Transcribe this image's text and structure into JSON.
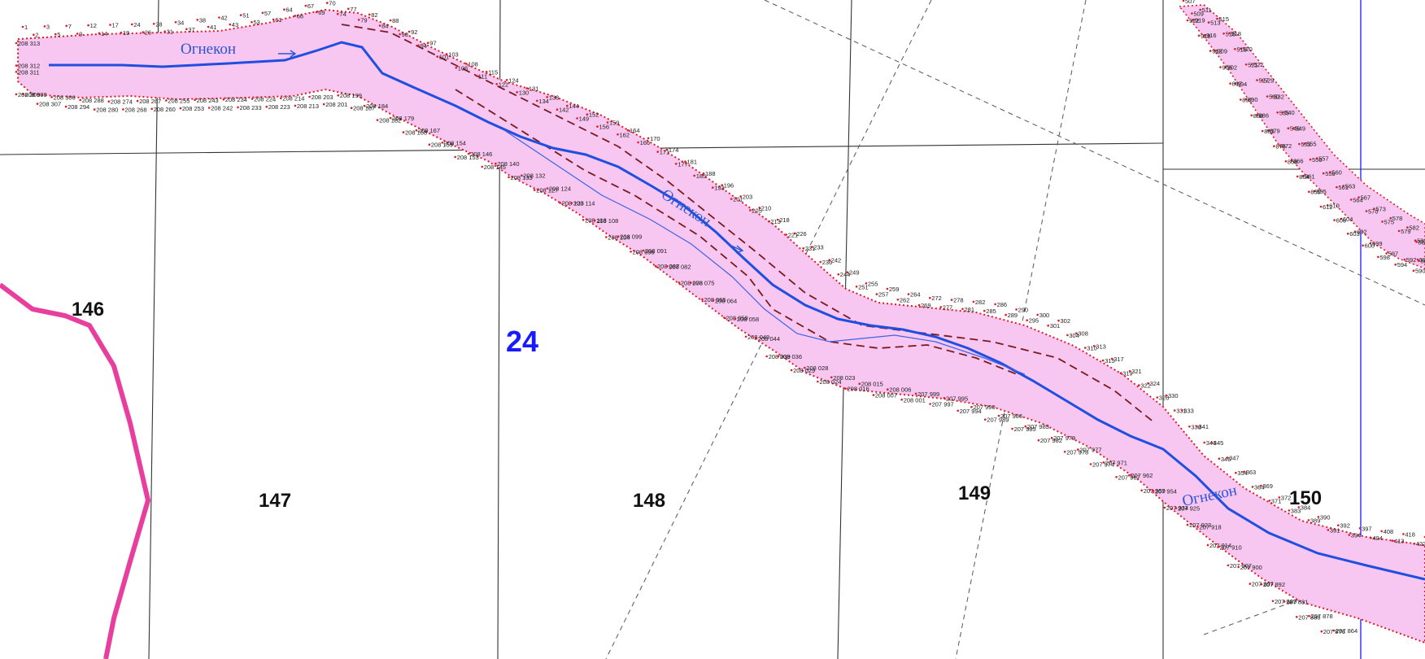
{
  "map": {
    "district_number": "24",
    "quarters": [
      "146",
      "147",
      "148",
      "149",
      "150"
    ],
    "river_name": "Огнекон",
    "river_labels": [
      "Огнекон",
      "Огнекон",
      "Огнекон"
    ],
    "colors": {
      "floodplain": "#f7c6f1",
      "river": "#1f4fe0",
      "boundary_red": "#e01b24",
      "district_border": "#e83e9e",
      "grid": "#333333",
      "district_number": "#1a1aff"
    },
    "point_labels_upper": [
      "1",
      "2",
      "3",
      "5",
      "7",
      "9",
      "12",
      "14",
      "17",
      "19",
      "24",
      "26",
      "28",
      "31",
      "34",
      "37",
      "38",
      "41",
      "42",
      "43",
      "51",
      "53",
      "57",
      "61",
      "64",
      "66",
      "67",
      "69",
      "70",
      "74",
      "77",
      "79",
      "82",
      "84",
      "88",
      "90",
      "92",
      "94",
      "97",
      "101",
      "103",
      "106",
      "108",
      "111",
      "115",
      "122",
      "124",
      "130",
      "131",
      "134",
      "138",
      "142",
      "144",
      "149",
      "152",
      "156",
      "159",
      "162",
      "164",
      "166",
      "170",
      "171",
      "174",
      "177",
      "181",
      "185",
      "188",
      "193",
      "196",
      "201",
      "203",
      "205",
      "210",
      "213",
      "218",
      "221",
      "226",
      "231",
      "233",
      "236",
      "242",
      "244",
      "249",
      "251",
      "255",
      "257",
      "259",
      "262",
      "264",
      "269",
      "272",
      "277",
      "278",
      "281",
      "282",
      "285",
      "286",
      "289",
      "290",
      "295",
      "300",
      "301",
      "302",
      "304",
      "308",
      "310",
      "313",
      "315",
      "317",
      "319",
      "321",
      "322",
      "324",
      "326",
      "330",
      "331",
      "333",
      "338",
      "341",
      "344",
      "345",
      "346",
      "347",
      "354",
      "363",
      "364",
      "369",
      "371",
      "372",
      "383",
      "384",
      "389",
      "390",
      "391",
      "392",
      "394",
      "397",
      "404",
      "408",
      "413",
      "418",
      "422",
      "426"
    ],
    "point_labels_lower": [
      "208 313",
      "208 312",
      "208 311",
      "208 309",
      "208 308",
      "208 307",
      "208 306",
      "208 294",
      "208 288",
      "208 280",
      "208 274",
      "208 268",
      "208 267",
      "208 260",
      "208 255",
      "208 253",
      "208 243",
      "208 242",
      "208 234",
      "208 233",
      "208 224",
      "208 223",
      "208 214",
      "208 213",
      "208 203",
      "208 201",
      "208 199",
      "208 187",
      "208 184",
      "208 182",
      "208 179",
      "208 168",
      "208 167",
      "208 159",
      "208 154",
      "208 153",
      "208 146",
      "208 145",
      "208 140",
      "208 133",
      "208 132",
      "208 127",
      "208 124",
      "208 123",
      "208 114",
      "208 113",
      "208 108",
      "208 104",
      "208 099",
      "208 096",
      "208 091",
      "208 087",
      "208 082",
      "208 078",
      "208 075",
      "208 065",
      "208 064",
      "208 059",
      "208 058",
      "208 049",
      "208 044",
      "208 039",
      "208 036",
      "208 029",
      "208 028",
      "208 024",
      "208 023",
      "208 016",
      "208 015",
      "208 007",
      "208 006",
      "208 001",
      "207 999",
      "207 997",
      "207 995",
      "207 994",
      "207 990",
      "207 989",
      "207 986",
      "207 985",
      "207 983",
      "207 982",
      "207 979",
      "207 978",
      "207 977",
      "207 974",
      "207 971",
      "207 967",
      "207 962",
      "207 959",
      "207 954",
      "207 934",
      "207 925",
      "207 923",
      "207 918",
      "207 914",
      "207 910",
      "207 907",
      "207 900",
      "207 897",
      "207 892",
      "207 889",
      "207 881",
      "207 880",
      "207 878",
      "207 876",
      "207 864"
    ],
    "point_labels_right": [
      "507",
      "509",
      "511",
      "513",
      "515",
      "516",
      "518",
      "519",
      "520",
      "521",
      "522",
      "527",
      "529",
      "530",
      "532",
      "535",
      "540",
      "546",
      "549",
      "553",
      "555",
      "556",
      "557",
      "559",
      "560",
      "561",
      "563",
      "564",
      "567",
      "570",
      "573",
      "575",
      "578",
      "579",
      "582",
      "583",
      "585",
      "587",
      "588",
      "590",
      "592",
      "594",
      "597",
      "598",
      "599",
      "600",
      "602",
      "603",
      "604",
      "606",
      "610",
      "612",
      "855",
      "859",
      "861",
      "864",
      "866",
      "868",
      "872",
      "876",
      "879",
      "883",
      "886",
      "888",
      "890",
      "892",
      "894",
      "897",
      "902",
      "906",
      "909",
      "912",
      "916",
      "918",
      "919",
      "922"
    ]
  }
}
